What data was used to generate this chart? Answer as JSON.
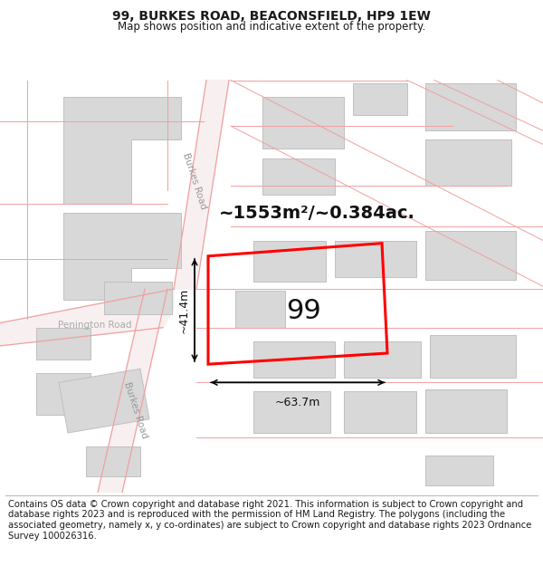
{
  "title": "99, BURKES ROAD, BEACONSFIELD, HP9 1EW",
  "subtitle": "Map shows position and indicative extent of the property.",
  "footer": "Contains OS data © Crown copyright and database right 2021. This information is subject to Crown copyright and database rights 2023 and is reproduced with the permission of HM Land Registry. The polygons (including the associated geometry, namely x, y co-ordinates) are subject to Crown copyright and database rights 2023 Ordnance Survey 100026316.",
  "plot_label": "99",
  "area_text": "~1553m²/~0.384ac.",
  "dim_width": "~63.7m",
  "dim_height": "~41.4m",
  "road1_label": "Burkes Road",
  "road2_label": "Burkes Road",
  "road3_label": "Penington Road",
  "bg_color": "#ffffff",
  "road_line_color": "#f0a0a0",
  "road_fill_color": "#f8f0f0",
  "building_fill": "#d8d8d8",
  "building_edge": "#c0c0c0",
  "plot_color": "#ff0000",
  "title_fontsize": 10,
  "subtitle_fontsize": 8.5,
  "footer_fontsize": 7.2,
  "area_fontsize": 14,
  "plot_label_fontsize": 22,
  "dim_fontsize": 9,
  "road_label_fontsize": 7.5
}
